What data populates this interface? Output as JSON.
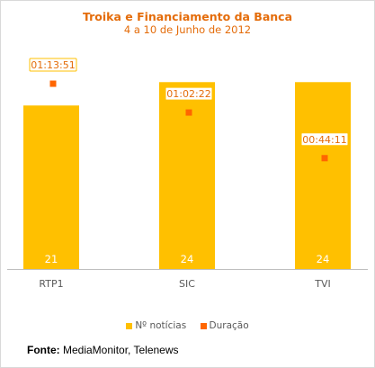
{
  "chart_data": {
    "type": "bar",
    "title": "Troika e Financiamento da Banca",
    "subtitle": "4 a 10 de Junho de 2012",
    "categories": [
      "RTP1",
      "SIC",
      "TVI"
    ],
    "series": [
      {
        "name": "Nº notícias",
        "type": "bar",
        "values": [
          21,
          24,
          24
        ],
        "color": "#ffc000"
      },
      {
        "name": "Duração",
        "type": "marker",
        "values": [
          "01:13:51",
          "01:02:22",
          "00:44:11"
        ],
        "values_seconds": [
          4431,
          3742,
          2651
        ],
        "color": "#ff6600"
      }
    ],
    "bar_ylim": [
      0,
      29
    ],
    "duration_ylim_seconds": [
      0,
      5400
    ],
    "legend_position": "bottom",
    "grid": false
  },
  "source": {
    "label": "Fonte:",
    "text": "MediaMonitor, Telenews"
  }
}
